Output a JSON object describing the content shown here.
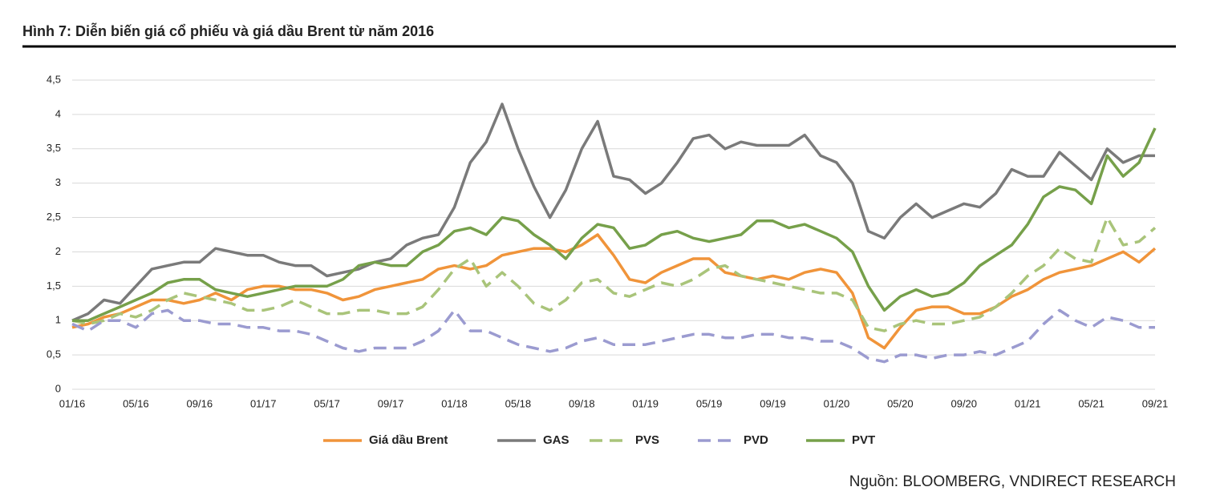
{
  "chart_data": {
    "type": "line",
    "title": "Hình 7: Diễn biến giá cổ phiếu và giá dầu Brent từ năm 2016",
    "source": "Nguồn: BLOOMBERG, VNDIRECT RESEARCH",
    "categories": [
      "01/16",
      null,
      null,
      null,
      "05/16",
      null,
      null,
      null,
      "09/16",
      null,
      null,
      null,
      "01/17",
      null,
      null,
      null,
      "05/17",
      null,
      null,
      null,
      "09/17",
      null,
      null,
      null,
      "01/18",
      null,
      null,
      null,
      "05/18",
      null,
      null,
      null,
      "09/18",
      null,
      null,
      null,
      "01/19",
      null,
      null,
      null,
      "05/19",
      null,
      null,
      null,
      "09/19",
      null,
      null,
      null,
      "01/20",
      null,
      null,
      null,
      "05/20",
      null,
      null,
      null,
      "09/20",
      null,
      null,
      null,
      "01/21",
      null,
      null,
      null,
      "05/21",
      null,
      null,
      null,
      "09/21"
    ],
    "ylim": [
      0,
      4.5
    ],
    "yticks": [
      0,
      {
        "value": 0.5,
        "label": "0,5"
      },
      1,
      {
        "value": 1.5,
        "label": "1,5"
      },
      2,
      {
        "value": 2.5,
        "label": "2,5"
      },
      3,
      {
        "value": 3.5,
        "label": "3,5"
      },
      4,
      {
        "value": 4.5,
        "label": "4,5"
      }
    ],
    "grid": true,
    "legend": "bottom",
    "series": [
      {
        "name": "Giá dầu Brent",
        "color": "#f0943a",
        "dash": false,
        "values": [
          0.9,
          0.95,
          1.05,
          1.1,
          1.2,
          1.3,
          1.3,
          1.25,
          1.3,
          1.4,
          1.3,
          1.45,
          1.5,
          1.5,
          1.45,
          1.45,
          1.4,
          1.3,
          1.35,
          1.45,
          1.5,
          1.55,
          1.6,
          1.75,
          1.8,
          1.75,
          1.8,
          1.95,
          2.0,
          2.05,
          2.05,
          2.0,
          2.1,
          2.25,
          1.95,
          1.6,
          1.55,
          1.7,
          1.8,
          1.9,
          1.9,
          1.7,
          1.65,
          1.6,
          1.65,
          1.6,
          1.7,
          1.75,
          1.7,
          1.4,
          0.75,
          0.6,
          0.9,
          1.15,
          1.2,
          1.2,
          1.1,
          1.1,
          1.2,
          1.35,
          1.45,
          1.6,
          1.7,
          1.75,
          1.8,
          1.9,
          2.0,
          1.85,
          2.05
        ]
      },
      {
        "name": "GAS",
        "color": "#7a7a7a",
        "dash": false,
        "values": [
          1.0,
          1.1,
          1.3,
          1.25,
          1.5,
          1.75,
          1.8,
          1.85,
          1.85,
          2.05,
          2.0,
          1.95,
          1.95,
          1.85,
          1.8,
          1.8,
          1.65,
          1.7,
          1.75,
          1.85,
          1.9,
          2.1,
          2.2,
          2.25,
          2.65,
          3.3,
          3.6,
          4.15,
          3.5,
          2.95,
          2.5,
          2.9,
          3.5,
          3.9,
          3.1,
          3.05,
          2.85,
          3.0,
          3.3,
          3.65,
          3.7,
          3.5,
          3.6,
          3.55,
          3.55,
          3.55,
          3.7,
          3.4,
          3.3,
          3.0,
          2.3,
          2.2,
          2.5,
          2.7,
          2.5,
          2.6,
          2.7,
          2.65,
          2.85,
          3.2,
          3.1,
          3.1,
          3.45,
          3.25,
          3.05,
          3.5,
          3.3,
          3.4,
          3.4
        ]
      },
      {
        "name": "PVS",
        "color": "#a9c47a",
        "dash": true,
        "values": [
          1.0,
          0.95,
          1.0,
          1.1,
          1.05,
          1.15,
          1.3,
          1.4,
          1.35,
          1.3,
          1.25,
          1.15,
          1.15,
          1.2,
          1.3,
          1.2,
          1.1,
          1.1,
          1.15,
          1.15,
          1.1,
          1.1,
          1.2,
          1.45,
          1.75,
          1.9,
          1.5,
          1.7,
          1.5,
          1.25,
          1.15,
          1.3,
          1.55,
          1.6,
          1.4,
          1.35,
          1.45,
          1.55,
          1.5,
          1.6,
          1.75,
          1.8,
          1.65,
          1.6,
          1.55,
          1.5,
          1.45,
          1.4,
          1.4,
          1.3,
          0.9,
          0.85,
          0.95,
          1.0,
          0.95,
          0.95,
          1.0,
          1.05,
          1.2,
          1.4,
          1.65,
          1.8,
          2.05,
          1.9,
          1.85,
          2.5,
          2.1,
          2.15,
          2.35
        ]
      },
      {
        "name": "PVD",
        "color": "#9b9bd0",
        "dash": true,
        "values": [
          0.95,
          0.85,
          1.0,
          1.0,
          0.9,
          1.1,
          1.15,
          1.0,
          1.0,
          0.95,
          0.95,
          0.9,
          0.9,
          0.85,
          0.85,
          0.8,
          0.7,
          0.6,
          0.55,
          0.6,
          0.6,
          0.6,
          0.7,
          0.85,
          1.15,
          0.85,
          0.85,
          0.75,
          0.65,
          0.6,
          0.55,
          0.6,
          0.7,
          0.75,
          0.65,
          0.65,
          0.65,
          0.7,
          0.75,
          0.8,
          0.8,
          0.75,
          0.75,
          0.8,
          0.8,
          0.75,
          0.75,
          0.7,
          0.7,
          0.6,
          0.45,
          0.4,
          0.5,
          0.5,
          0.45,
          0.5,
          0.5,
          0.55,
          0.5,
          0.6,
          0.7,
          0.95,
          1.15,
          1.0,
          0.9,
          1.05,
          1.0,
          0.9,
          0.9
        ]
      },
      {
        "name": "PVT",
        "color": "#76a04a",
        "dash": false,
        "values": [
          1.0,
          1.0,
          1.1,
          1.2,
          1.3,
          1.4,
          1.55,
          1.6,
          1.6,
          1.45,
          1.4,
          1.35,
          1.4,
          1.45,
          1.5,
          1.5,
          1.5,
          1.6,
          1.8,
          1.85,
          1.8,
          1.8,
          2.0,
          2.1,
          2.3,
          2.35,
          2.25,
          2.5,
          2.45,
          2.25,
          2.1,
          1.9,
          2.2,
          2.4,
          2.35,
          2.05,
          2.1,
          2.25,
          2.3,
          2.2,
          2.15,
          2.2,
          2.25,
          2.45,
          2.45,
          2.35,
          2.4,
          2.3,
          2.2,
          2.0,
          1.5,
          1.15,
          1.35,
          1.45,
          1.35,
          1.4,
          1.55,
          1.8,
          1.95,
          2.1,
          2.4,
          2.8,
          2.95,
          2.9,
          2.7,
          3.4,
          3.1,
          3.3,
          3.8
        ]
      }
    ]
  }
}
